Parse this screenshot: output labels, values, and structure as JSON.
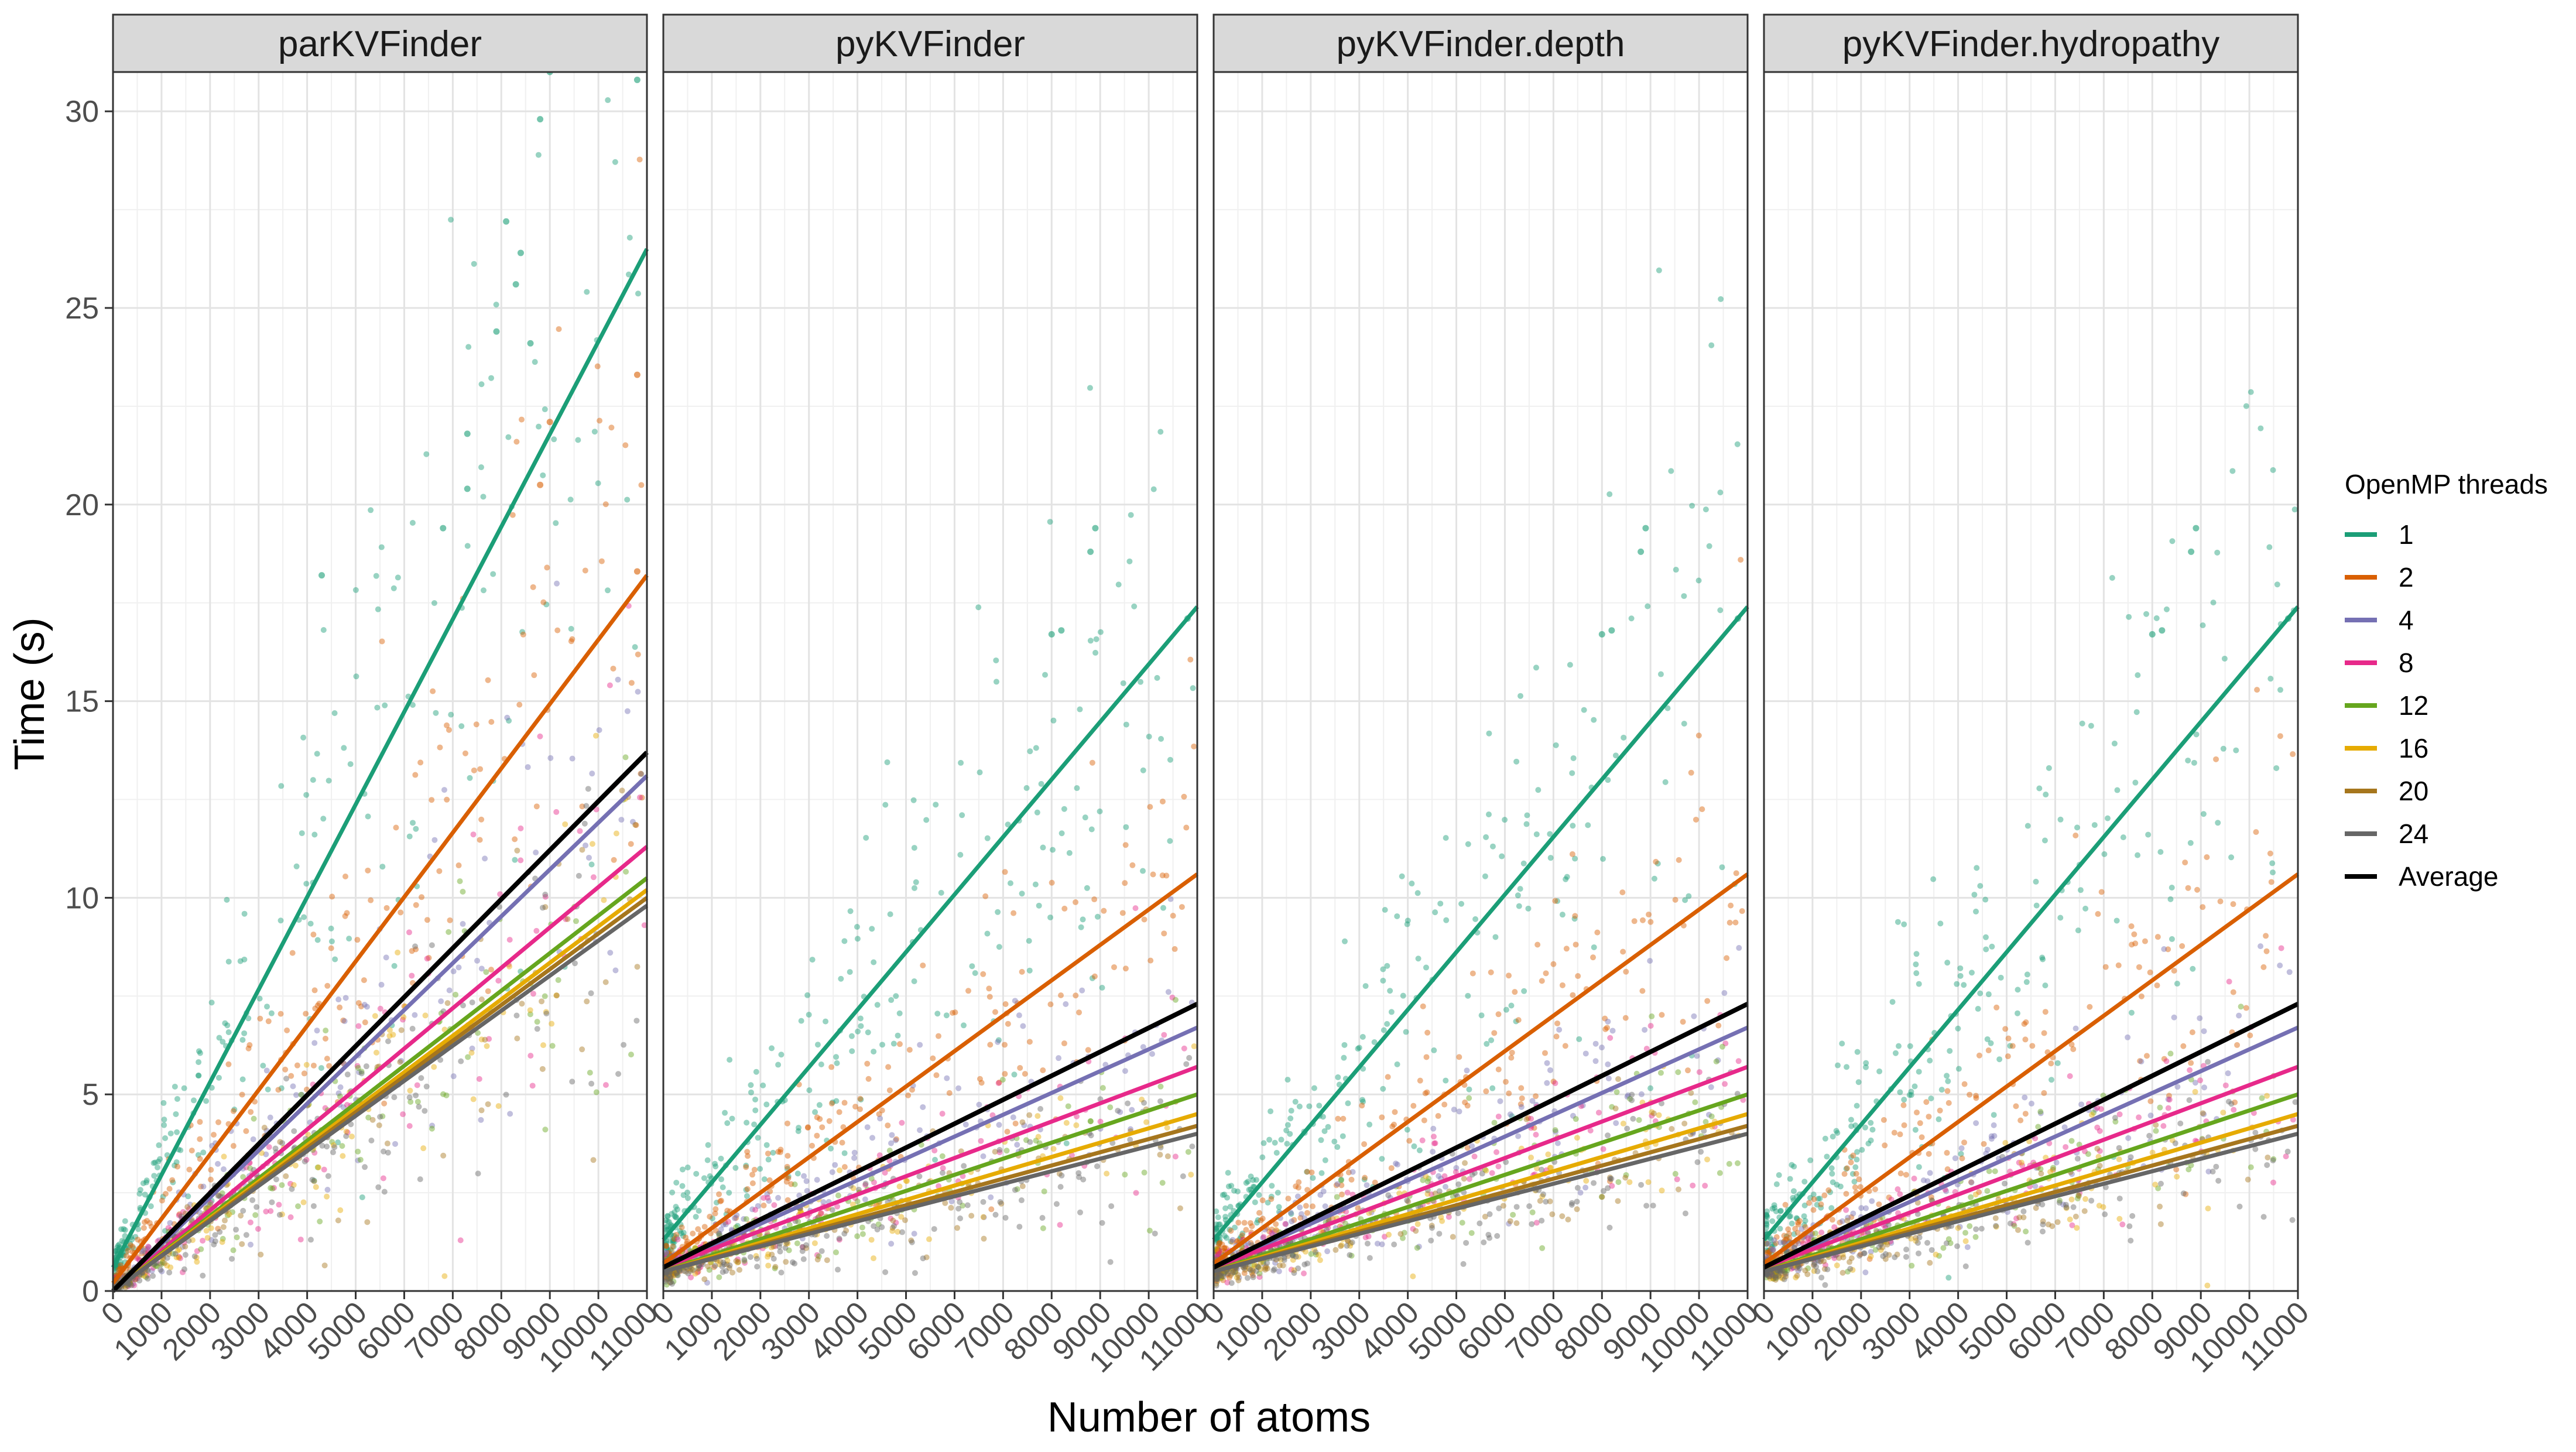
{
  "chart_data": {
    "type": "scatter",
    "layout": "faceted",
    "xlabel": "Number of atoms",
    "ylabel": "Time (s)",
    "xlim": [
      0,
      11000
    ],
    "ylim": [
      0,
      31
    ],
    "x_ticks": [
      "0",
      "1000",
      "2000",
      "3000",
      "4000",
      "5000",
      "6000",
      "7000",
      "8000",
      "9000",
      "10000",
      "11000"
    ],
    "y_ticks": [
      "0",
      "5",
      "10",
      "15",
      "20",
      "25",
      "30"
    ],
    "grid": true,
    "legend": {
      "title": "OpenMP threads",
      "placement": "right",
      "entries": [
        {
          "label": "1",
          "color": "#1B9E77"
        },
        {
          "label": "2",
          "color": "#D95F02"
        },
        {
          "label": "4",
          "color": "#7570B3"
        },
        {
          "label": "8",
          "color": "#E7298A"
        },
        {
          "label": "12",
          "color": "#66A61E"
        },
        {
          "label": "16",
          "color": "#E6AB02"
        },
        {
          "label": "20",
          "color": "#A6761D"
        },
        {
          "label": "24",
          "color": "#666666"
        },
        {
          "label": "Average",
          "color": "#000000"
        }
      ]
    },
    "panels": [
      {
        "title": "parKVFinder",
        "series": [
          {
            "name": "1",
            "x": [
              0,
              11000
            ],
            "y": [
              0.6,
              26.5
            ]
          },
          {
            "name": "2",
            "x": [
              0,
              11000
            ],
            "y": [
              0.2,
              18.2
            ]
          },
          {
            "name": "4",
            "x": [
              0,
              11000
            ],
            "y": [
              0.0,
              13.1
            ]
          },
          {
            "name": "8",
            "x": [
              0,
              11000
            ],
            "y": [
              0.0,
              11.3
            ]
          },
          {
            "name": "12",
            "x": [
              0,
              11000
            ],
            "y": [
              0.0,
              10.5
            ]
          },
          {
            "name": "16",
            "x": [
              0,
              11000
            ],
            "y": [
              0.0,
              10.2
            ]
          },
          {
            "name": "20",
            "x": [
              0,
              11000
            ],
            "y": [
              0.0,
              10.0
            ]
          },
          {
            "name": "24",
            "x": [
              0,
              11000
            ],
            "y": [
              0.0,
              9.8
            ]
          },
          {
            "name": "Average",
            "x": [
              0,
              11000
            ],
            "y": [
              0.0,
              13.7
            ]
          }
        ]
      },
      {
        "title": "pyKVFinder",
        "series": [
          {
            "name": "1",
            "x": [
              0,
              11000
            ],
            "y": [
              1.3,
              17.4
            ]
          },
          {
            "name": "2",
            "x": [
              0,
              11000
            ],
            "y": [
              0.7,
              10.6
            ]
          },
          {
            "name": "4",
            "x": [
              0,
              11000
            ],
            "y": [
              0.6,
              6.7
            ]
          },
          {
            "name": "8",
            "x": [
              0,
              11000
            ],
            "y": [
              0.6,
              5.7
            ]
          },
          {
            "name": "12",
            "x": [
              0,
              11000
            ],
            "y": [
              0.5,
              5.0
            ]
          },
          {
            "name": "16",
            "x": [
              0,
              11000
            ],
            "y": [
              0.5,
              4.5
            ]
          },
          {
            "name": "20",
            "x": [
              0,
              11000
            ],
            "y": [
              0.5,
              4.2
            ]
          },
          {
            "name": "24",
            "x": [
              0,
              11000
            ],
            "y": [
              0.5,
              4.0
            ]
          },
          {
            "name": "Average",
            "x": [
              0,
              11000
            ],
            "y": [
              0.6,
              7.3
            ]
          }
        ]
      },
      {
        "title": "pyKVFinder.depth",
        "series": [
          {
            "name": "1",
            "x": [
              0,
              11000
            ],
            "y": [
              1.3,
              17.4
            ]
          },
          {
            "name": "2",
            "x": [
              0,
              11000
            ],
            "y": [
              0.7,
              10.6
            ]
          },
          {
            "name": "4",
            "x": [
              0,
              11000
            ],
            "y": [
              0.6,
              6.7
            ]
          },
          {
            "name": "8",
            "x": [
              0,
              11000
            ],
            "y": [
              0.6,
              5.7
            ]
          },
          {
            "name": "12",
            "x": [
              0,
              11000
            ],
            "y": [
              0.5,
              5.0
            ]
          },
          {
            "name": "16",
            "x": [
              0,
              11000
            ],
            "y": [
              0.5,
              4.5
            ]
          },
          {
            "name": "20",
            "x": [
              0,
              11000
            ],
            "y": [
              0.5,
              4.2
            ]
          },
          {
            "name": "24",
            "x": [
              0,
              11000
            ],
            "y": [
              0.5,
              4.0
            ]
          },
          {
            "name": "Average",
            "x": [
              0,
              11000
            ],
            "y": [
              0.6,
              7.3
            ]
          }
        ]
      },
      {
        "title": "pyKVFinder.hydropathy",
        "series": [
          {
            "name": "1",
            "x": [
              0,
              11000
            ],
            "y": [
              1.3,
              17.4
            ]
          },
          {
            "name": "2",
            "x": [
              0,
              11000
            ],
            "y": [
              0.7,
              10.6
            ]
          },
          {
            "name": "4",
            "x": [
              0,
              11000
            ],
            "y": [
              0.6,
              6.7
            ]
          },
          {
            "name": "8",
            "x": [
              0,
              11000
            ],
            "y": [
              0.6,
              5.7
            ]
          },
          {
            "name": "12",
            "x": [
              0,
              11000
            ],
            "y": [
              0.5,
              5.0
            ]
          },
          {
            "name": "16",
            "x": [
              0,
              11000
            ],
            "y": [
              0.5,
              4.5
            ]
          },
          {
            "name": "20",
            "x": [
              0,
              11000
            ],
            "y": [
              0.5,
              4.2
            ]
          },
          {
            "name": "24",
            "x": [
              0,
              11000
            ],
            "y": [
              0.5,
              4.0
            ]
          },
          {
            "name": "Average",
            "x": [
              0,
              11000
            ],
            "y": [
              0.6,
              7.3
            ]
          }
        ]
      }
    ],
    "outliers": [
      {
        "panel": 0,
        "x": 9000,
        "y": 31.0,
        "series": "1"
      },
      {
        "panel": 0,
        "x": 10800,
        "y": 30.8,
        "series": "1"
      },
      {
        "panel": 0,
        "x": 8800,
        "y": 29.8,
        "series": "1"
      },
      {
        "panel": 0,
        "x": 8100,
        "y": 27.2,
        "series": "1"
      },
      {
        "panel": 0,
        "x": 8400,
        "y": 26.4,
        "series": "1"
      },
      {
        "panel": 0,
        "x": 8300,
        "y": 25.6,
        "series": "1"
      },
      {
        "panel": 0,
        "x": 8600,
        "y": 24.1,
        "series": "1"
      },
      {
        "panel": 0,
        "x": 7900,
        "y": 24.4,
        "series": "1"
      },
      {
        "panel": 0,
        "x": 10800,
        "y": 23.3,
        "series": "2"
      },
      {
        "panel": 0,
        "x": 9000,
        "y": 22.1,
        "series": "2"
      },
      {
        "panel": 0,
        "x": 7300,
        "y": 21.8,
        "series": "1"
      },
      {
        "panel": 0,
        "x": 7300,
        "y": 20.4,
        "series": "1"
      },
      {
        "panel": 0,
        "x": 8800,
        "y": 20.5,
        "series": "2"
      },
      {
        "panel": 0,
        "x": 6800,
        "y": 19.4,
        "series": "1"
      },
      {
        "panel": 0,
        "x": 4300,
        "y": 18.2,
        "series": "1"
      },
      {
        "panel": 0,
        "x": 10800,
        "y": 18.3,
        "series": "2"
      },
      {
        "panel": 1,
        "x": 8900,
        "y": 19.4,
        "series": "1"
      },
      {
        "panel": 1,
        "x": 8800,
        "y": 18.8,
        "series": "1"
      },
      {
        "panel": 1,
        "x": 10800,
        "y": 17.1,
        "series": "1"
      },
      {
        "panel": 1,
        "x": 8000,
        "y": 16.7,
        "series": "1"
      },
      {
        "panel": 1,
        "x": 8200,
        "y": 16.8,
        "series": "1"
      },
      {
        "panel": 2,
        "x": 8900,
        "y": 19.4,
        "series": "1"
      },
      {
        "panel": 2,
        "x": 8800,
        "y": 18.8,
        "series": "1"
      },
      {
        "panel": 2,
        "x": 10800,
        "y": 17.1,
        "series": "1"
      },
      {
        "panel": 2,
        "x": 8000,
        "y": 16.7,
        "series": "1"
      },
      {
        "panel": 2,
        "x": 8200,
        "y": 16.8,
        "series": "1"
      },
      {
        "panel": 3,
        "x": 8900,
        "y": 19.4,
        "series": "1"
      },
      {
        "panel": 3,
        "x": 8800,
        "y": 18.8,
        "series": "1"
      },
      {
        "panel": 3,
        "x": 10800,
        "y": 17.1,
        "series": "1"
      },
      {
        "panel": 3,
        "x": 8000,
        "y": 16.7,
        "series": "1"
      },
      {
        "panel": 3,
        "x": 8200,
        "y": 16.8,
        "series": "1"
      }
    ]
  }
}
